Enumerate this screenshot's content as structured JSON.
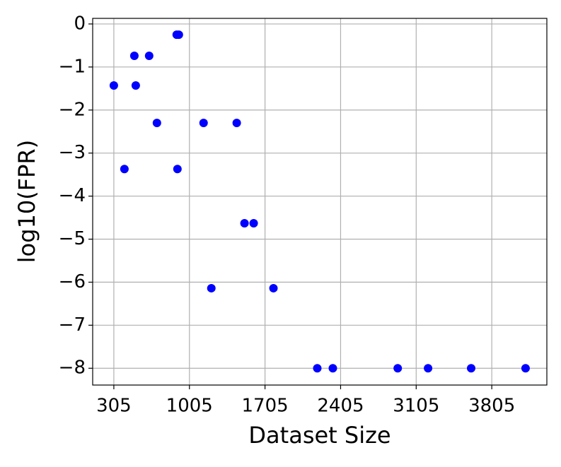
{
  "chart_data": {
    "type": "scatter",
    "x_label": "Dataset Size",
    "y_label": "log10(FPR)",
    "series": [
      {
        "color": "#0000ff",
        "x": [
          305,
          403,
          495,
          508,
          632,
          704,
          887,
          907,
          894,
          1136,
          1208,
          1443,
          1515,
          1600,
          1783,
          2189,
          2333,
          2934,
          3215,
          3614,
          4118
        ],
        "values": [
          -1.43,
          -3.37,
          -0.74,
          -1.43,
          -0.74,
          -2.3,
          -0.25,
          -0.25,
          -3.37,
          -2.3,
          -6.14,
          -2.3,
          -4.63,
          -4.63,
          -6.14,
          -8,
          -8,
          -8,
          -8,
          -8,
          -8
        ]
      }
    ],
    "xlim": [
      109,
      4315
    ],
    "xticks": [
      305,
      1005,
      1705,
      2405,
      3105,
      3805
    ],
    "ylim": [
      -8.39,
      0.13
    ],
    "yticks": [
      {
        "value": 0,
        "label": "0"
      },
      {
        "value": -1,
        "label": "−1"
      },
      {
        "value": -2,
        "label": "−2"
      },
      {
        "value": -3,
        "label": "−3"
      },
      {
        "value": -4,
        "label": "−4"
      },
      {
        "value": -5,
        "label": "−5"
      },
      {
        "value": -6,
        "label": "−6"
      },
      {
        "value": -7,
        "label": "−7"
      },
      {
        "value": -8,
        "label": "−8"
      }
    ],
    "grid": true
  }
}
